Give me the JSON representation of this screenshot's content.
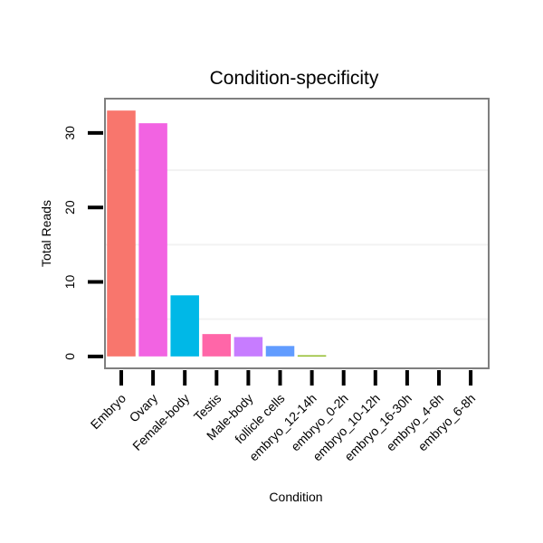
{
  "chart_data": {
    "type": "bar",
    "title": "Condition-specificity",
    "xlabel": "Condition",
    "ylabel": "Total Reads",
    "categories": [
      "Embryo",
      "Ovary",
      "Female-body",
      "Testis",
      "Male-body",
      "follicle cells",
      "embryo_12-14h",
      "embryo_0-2h",
      "embryo_10-12h",
      "embryo_16-30h",
      "embryo_4-6h",
      "embryo_6-8h"
    ],
    "values": [
      33,
      31.3,
      8.2,
      3.0,
      2.6,
      1.4,
      0.15,
      0,
      0,
      0,
      0,
      0
    ],
    "colors": [
      "#f8766d",
      "#f263e2",
      "#00b8e7",
      "#ff66a8",
      "#c77cff",
      "#619cff",
      "#7cae00",
      "#00c08b",
      "#cd9600",
      "#00a9ff",
      "#00bfc4",
      "#e68613"
    ],
    "ylim": [
      -1.6,
      34.6
    ],
    "yticks": [
      0,
      10,
      20,
      30
    ],
    "grid": true,
    "legend": "none"
  }
}
